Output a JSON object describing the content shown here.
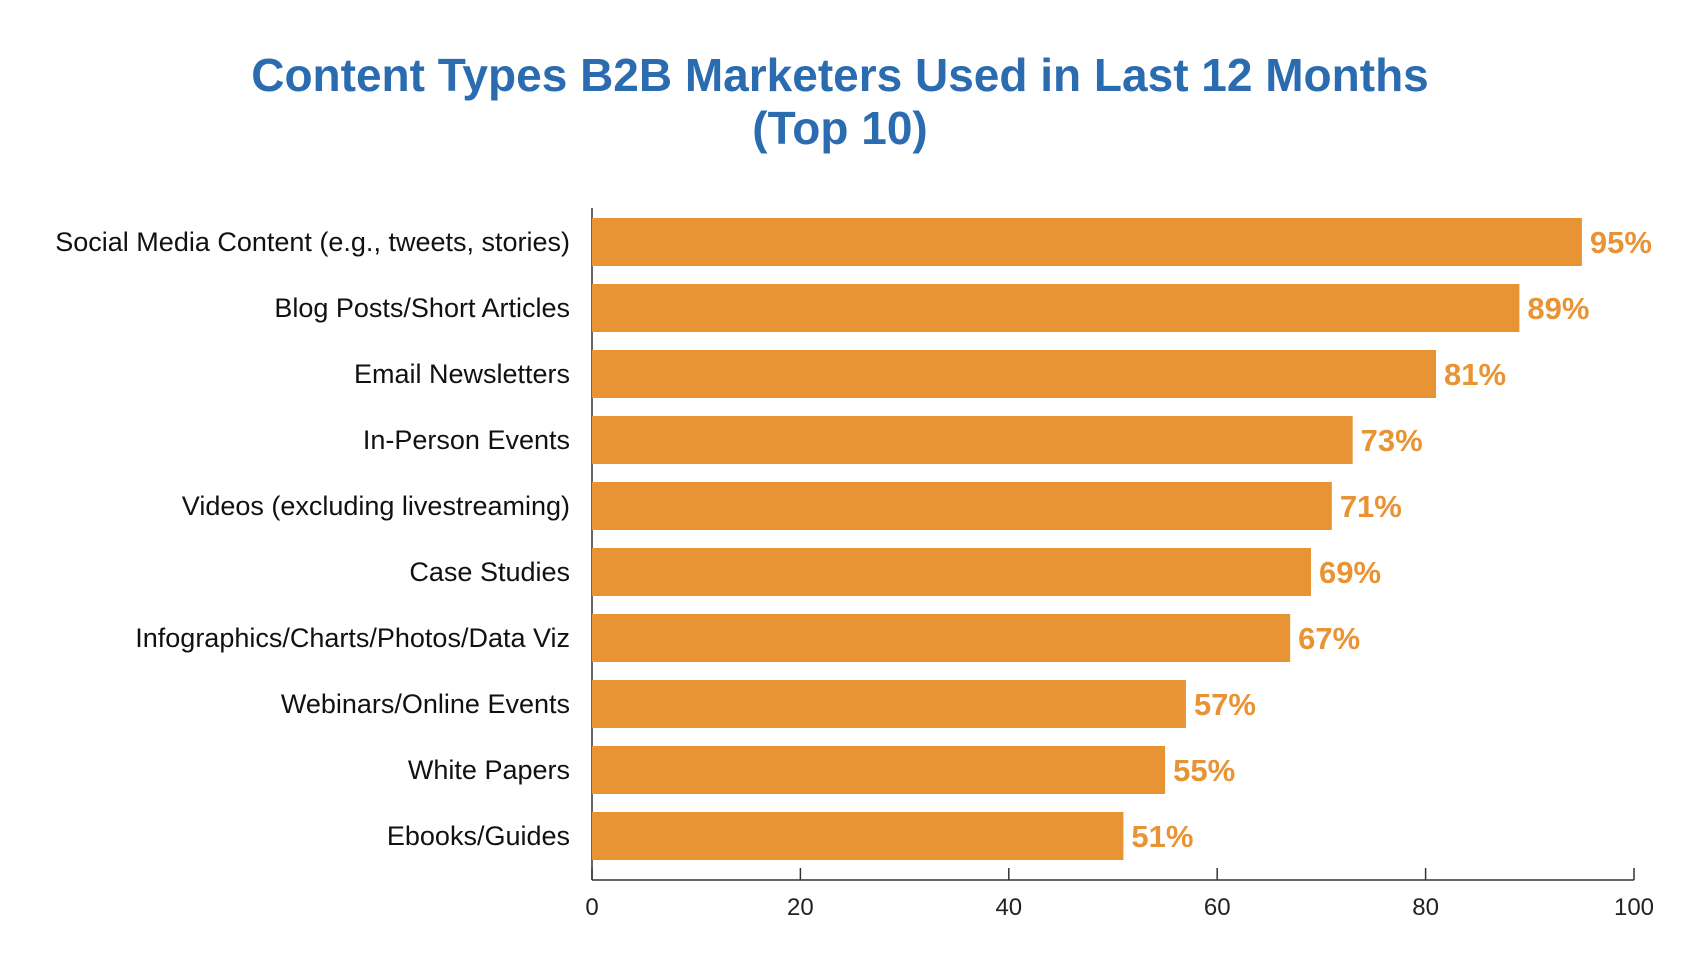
{
  "colors": {
    "title": "#2b6cb0",
    "bar": "#e89334",
    "value_label": "#e89334",
    "axis": "#333333"
  },
  "chart_data": {
    "type": "bar",
    "orientation": "horizontal",
    "title": "Content Types B2B Marketers Used in Last 12 Months",
    "subtitle": "(Top 10)",
    "categories": [
      "Social Media Content (e.g., tweets, stories)",
      "Blog Posts/Short Articles",
      "Email Newsletters",
      "In-Person Events",
      "Videos (excluding livestreaming)",
      "Case Studies",
      "Infographics/Charts/Photos/Data Viz",
      "Webinars/Online Events",
      "White Papers",
      "Ebooks/Guides"
    ],
    "values": [
      95,
      89,
      81,
      73,
      71,
      69,
      67,
      57,
      55,
      51
    ],
    "value_labels": [
      "95%",
      "89%",
      "81%",
      "73%",
      "71%",
      "69%",
      "67%",
      "57%",
      "55%",
      "51%"
    ],
    "xlabel": "",
    "ylabel": "",
    "xlim": [
      0,
      100
    ],
    "xticks": [
      0,
      20,
      40,
      60,
      80,
      100
    ],
    "xtick_labels": [
      "0",
      "20",
      "40",
      "60",
      "80",
      "100"
    ],
    "grid": false,
    "legend": "none"
  }
}
